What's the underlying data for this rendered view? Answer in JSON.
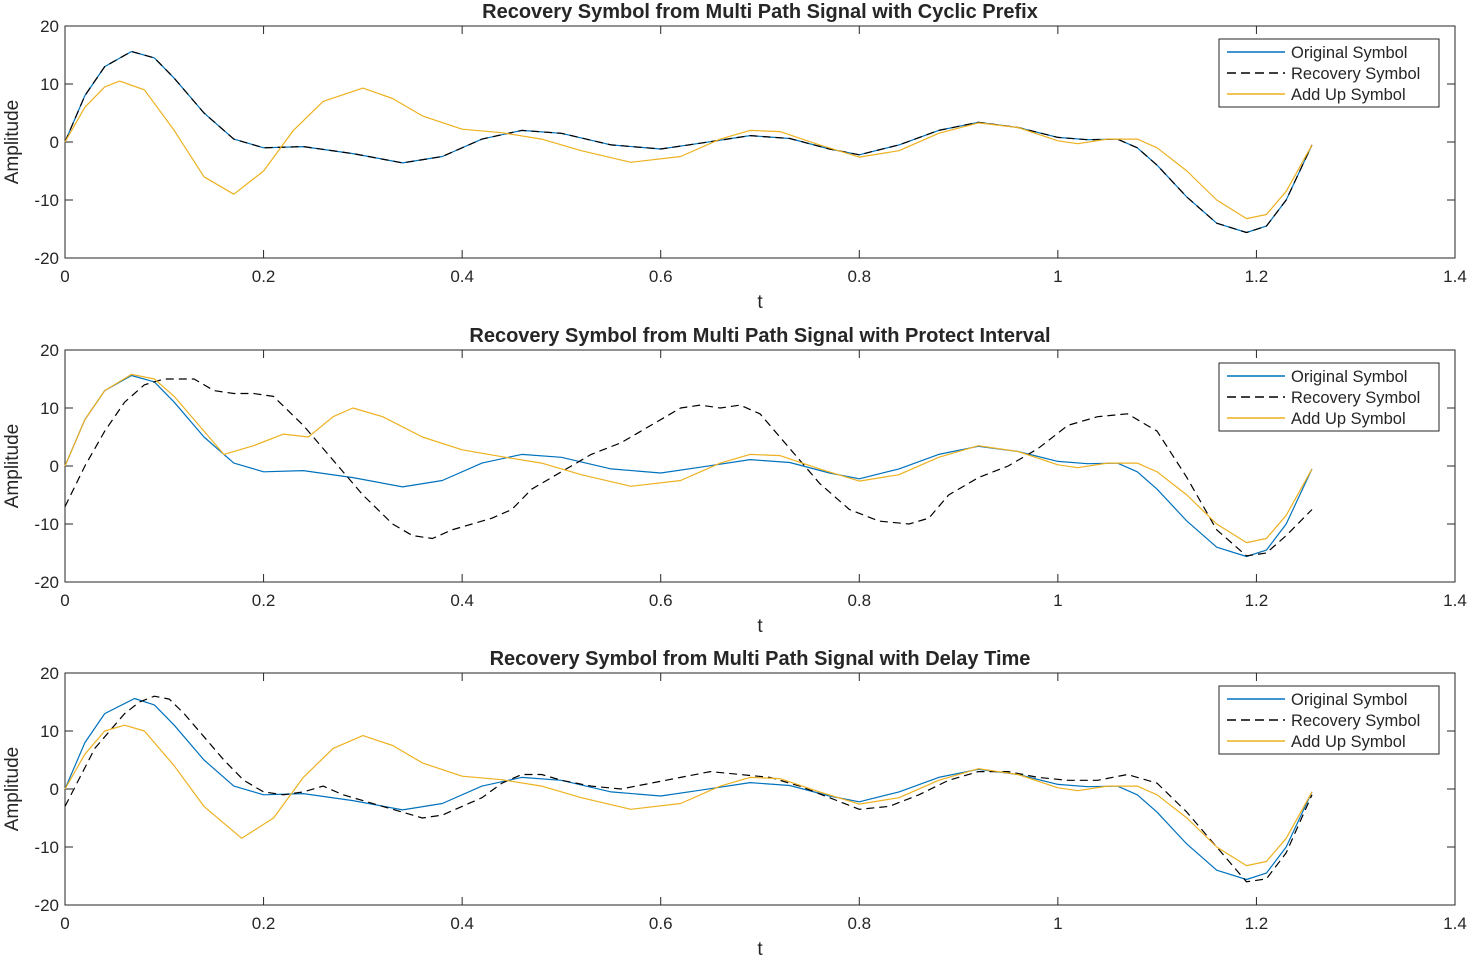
{
  "figure": {
    "colors": {
      "original": "#0072BD",
      "recovery": "#000000",
      "addup": "#EDB120",
      "axis": "#262626"
    }
  },
  "chart_data": [
    {
      "type": "line",
      "title": "Recovery Symbol from Multi Path Signal with Cyclic Prefix",
      "xlabel": "t",
      "ylabel": "Amplitude",
      "xlim": [
        0,
        1.4
      ],
      "ylim": [
        -20,
        20
      ],
      "xticks": [
        0,
        0.2,
        0.4,
        0.6,
        0.8,
        1,
        1.2,
        1.4
      ],
      "xtick_labels": [
        "0",
        "0.2",
        "0.4",
        "0.6",
        "0.8",
        "1",
        "1.2",
        "1.4"
      ],
      "yticks": [
        -20,
        -10,
        0,
        10,
        20
      ],
      "ytick_labels": [
        "-20",
        "-10",
        "0",
        "10",
        "20"
      ],
      "legend_position": "top-right",
      "grid": false,
      "series": [
        {
          "name": "Original Symbol",
          "style": "solid",
          "color": "#0072BD",
          "x": [
            0,
            0.02,
            0.04,
            0.067,
            0.09,
            0.11,
            0.14,
            0.17,
            0.2,
            0.24,
            0.29,
            0.34,
            0.38,
            0.42,
            0.46,
            0.5,
            0.55,
            0.6,
            0.64,
            0.69,
            0.73,
            0.77,
            0.8,
            0.84,
            0.88,
            0.92,
            0.96,
            1.0,
            1.03,
            1.06,
            1.08,
            1.1,
            1.13,
            1.16,
            1.19,
            1.21,
            1.23,
            1.256
          ],
          "y": [
            0,
            8,
            13,
            15.6,
            14.5,
            11,
            5,
            0.5,
            -1,
            -0.8,
            -2,
            -3.6,
            -2.5,
            0.5,
            2,
            1.5,
            -0.5,
            -1.2,
            -0.2,
            1.1,
            0.6,
            -1.2,
            -2.2,
            -0.5,
            2,
            3.4,
            2.5,
            0.8,
            0.4,
            0.5,
            -1,
            -4,
            -9.5,
            -14,
            -15.6,
            -14.5,
            -10,
            -0.5
          ]
        },
        {
          "name": "Recovery Symbol",
          "style": "dashed",
          "color": "#000000",
          "x": [
            0,
            0.02,
            0.04,
            0.067,
            0.09,
            0.11,
            0.14,
            0.17,
            0.2,
            0.24,
            0.29,
            0.34,
            0.38,
            0.42,
            0.46,
            0.5,
            0.55,
            0.6,
            0.64,
            0.69,
            0.73,
            0.77,
            0.8,
            0.84,
            0.88,
            0.92,
            0.96,
            1.0,
            1.03,
            1.06,
            1.08,
            1.1,
            1.13,
            1.16,
            1.19,
            1.21,
            1.23,
            1.256
          ],
          "y": [
            0,
            8,
            13,
            15.6,
            14.5,
            11,
            5,
            0.5,
            -1,
            -0.8,
            -2,
            -3.6,
            -2.5,
            0.5,
            2,
            1.5,
            -0.5,
            -1.2,
            -0.2,
            1.1,
            0.6,
            -1.2,
            -2.2,
            -0.5,
            2,
            3.4,
            2.5,
            0.8,
            0.4,
            0.5,
            -1,
            -4,
            -9.5,
            -14,
            -15.6,
            -14.5,
            -10,
            -0.5
          ]
        },
        {
          "name": "Add Up Symbol",
          "style": "solid",
          "color": "#EDB120",
          "x": [
            0,
            0.02,
            0.04,
            0.055,
            0.08,
            0.11,
            0.14,
            0.17,
            0.2,
            0.23,
            0.26,
            0.3,
            0.33,
            0.36,
            0.4,
            0.44,
            0.48,
            0.52,
            0.57,
            0.62,
            0.66,
            0.69,
            0.72,
            0.76,
            0.8,
            0.84,
            0.88,
            0.92,
            0.96,
            1.0,
            1.02,
            1.05,
            1.08,
            1.1,
            1.13,
            1.16,
            1.19,
            1.21,
            1.23,
            1.256
          ],
          "y": [
            0,
            6,
            9.5,
            10.5,
            9,
            2,
            -6,
            -9,
            -5,
            2,
            7,
            9.3,
            7.5,
            4.5,
            2.2,
            1.6,
            0.5,
            -1.5,
            -3.5,
            -2.5,
            0.5,
            2,
            1.8,
            -0.5,
            -2.6,
            -1.5,
            1.5,
            3.3,
            2.5,
            0.2,
            -0.3,
            0.5,
            0.5,
            -1,
            -5,
            -10,
            -13.2,
            -12.5,
            -8.5,
            -0.5
          ]
        }
      ]
    },
    {
      "type": "line",
      "title": "Recovery Symbol from Multi Path Signal with Protect Interval",
      "xlabel": "t",
      "ylabel": "Amplitude",
      "xlim": [
        0,
        1.4
      ],
      "ylim": [
        -20,
        20
      ],
      "xticks": [
        0,
        0.2,
        0.4,
        0.6,
        0.8,
        1,
        1.2,
        1.4
      ],
      "xtick_labels": [
        "0",
        "0.2",
        "0.4",
        "0.6",
        "0.8",
        "1",
        "1.2",
        "1.4"
      ],
      "yticks": [
        -20,
        -10,
        0,
        10,
        20
      ],
      "ytick_labels": [
        "-20",
        "-10",
        "0",
        "10",
        "20"
      ],
      "legend_position": "top-right",
      "grid": false,
      "series": [
        {
          "name": "Original Symbol",
          "style": "solid",
          "color": "#0072BD",
          "x": [
            0,
            0.02,
            0.04,
            0.067,
            0.09,
            0.11,
            0.14,
            0.17,
            0.2,
            0.24,
            0.29,
            0.34,
            0.38,
            0.42,
            0.46,
            0.5,
            0.55,
            0.6,
            0.64,
            0.69,
            0.73,
            0.77,
            0.8,
            0.84,
            0.88,
            0.92,
            0.96,
            1.0,
            1.03,
            1.06,
            1.08,
            1.1,
            1.13,
            1.16,
            1.19,
            1.21,
            1.23,
            1.256
          ],
          "y": [
            0,
            8,
            13,
            15.6,
            14.5,
            11,
            5,
            0.5,
            -1,
            -0.8,
            -2,
            -3.6,
            -2.5,
            0.5,
            2,
            1.5,
            -0.5,
            -1.2,
            -0.2,
            1.1,
            0.6,
            -1.2,
            -2.2,
            -0.5,
            2,
            3.4,
            2.5,
            0.8,
            0.4,
            0.5,
            -1,
            -4,
            -9.5,
            -14,
            -15.6,
            -14.5,
            -10,
            -0.5
          ]
        },
        {
          "name": "Recovery Symbol",
          "style": "dashed",
          "color": "#000000",
          "x": [
            0,
            0.02,
            0.04,
            0.06,
            0.08,
            0.1,
            0.13,
            0.15,
            0.17,
            0.19,
            0.21,
            0.24,
            0.27,
            0.3,
            0.33,
            0.35,
            0.37,
            0.39,
            0.41,
            0.43,
            0.45,
            0.47,
            0.5,
            0.53,
            0.56,
            0.59,
            0.62,
            0.64,
            0.66,
            0.68,
            0.7,
            0.73,
            0.76,
            0.79,
            0.82,
            0.85,
            0.87,
            0.89,
            0.92,
            0.95,
            0.98,
            1.01,
            1.04,
            1.07,
            1.1,
            1.13,
            1.16,
            1.19,
            1.21,
            1.23,
            1.256
          ],
          "y": [
            -7,
            0,
            6,
            11,
            14,
            15,
            15,
            13,
            12.5,
            12.5,
            12,
            7,
            1,
            -5,
            -10,
            -12,
            -12.5,
            -11,
            -10,
            -9,
            -7.5,
            -4,
            -1,
            2,
            4,
            7,
            10,
            10.5,
            10,
            10.5,
            9,
            3,
            -3,
            -7.5,
            -9.5,
            -10,
            -9,
            -5,
            -2,
            0,
            3,
            7,
            8.5,
            9,
            6,
            -2,
            -11,
            -15.5,
            -15,
            -12,
            -7.5
          ]
        },
        {
          "name": "Add Up Symbol",
          "style": "solid",
          "color": "#EDB120",
          "x": [
            0,
            0.02,
            0.04,
            0.067,
            0.09,
            0.11,
            0.13,
            0.16,
            0.19,
            0.22,
            0.245,
            0.27,
            0.29,
            0.32,
            0.36,
            0.4,
            0.44,
            0.48,
            0.52,
            0.57,
            0.62,
            0.66,
            0.69,
            0.72,
            0.76,
            0.8,
            0.84,
            0.88,
            0.92,
            0.96,
            1.0,
            1.02,
            1.05,
            1.08,
            1.1,
            1.13,
            1.16,
            1.19,
            1.21,
            1.23,
            1.256
          ],
          "y": [
            0,
            8,
            13,
            15.8,
            15,
            12,
            8,
            2,
            3.5,
            5.5,
            5,
            8.5,
            10,
            8.5,
            5,
            2.8,
            1.6,
            0.5,
            -1.5,
            -3.5,
            -2.5,
            0.5,
            2,
            1.8,
            -0.5,
            -2.6,
            -1.5,
            1.5,
            3.5,
            2.5,
            0.2,
            -0.3,
            0.5,
            0.5,
            -1,
            -5,
            -10,
            -13.2,
            -12.5,
            -8.5,
            -0.5
          ]
        }
      ]
    },
    {
      "type": "line",
      "title": "Recovery Symbol from Multi Path Signal with Delay Time",
      "xlabel": "t",
      "ylabel": "Amplitude",
      "xlim": [
        0,
        1.4
      ],
      "ylim": [
        -20,
        20
      ],
      "xticks": [
        0,
        0.2,
        0.4,
        0.6,
        0.8,
        1,
        1.2,
        1.4
      ],
      "xtick_labels": [
        "0",
        "0.2",
        "0.4",
        "0.6",
        "0.8",
        "1",
        "1.2",
        "1.4"
      ],
      "yticks": [
        -20,
        -10,
        0,
        10,
        20
      ],
      "ytick_labels": [
        "-20",
        "-10",
        "0",
        "10",
        "20"
      ],
      "legend_position": "top-right",
      "grid": false,
      "series": [
        {
          "name": "Original Symbol",
          "style": "solid",
          "color": "#0072BD",
          "x": [
            0,
            0.02,
            0.04,
            0.07,
            0.09,
            0.11,
            0.14,
            0.17,
            0.2,
            0.24,
            0.29,
            0.34,
            0.38,
            0.42,
            0.46,
            0.5,
            0.55,
            0.6,
            0.64,
            0.69,
            0.73,
            0.77,
            0.8,
            0.84,
            0.88,
            0.92,
            0.96,
            1.0,
            1.03,
            1.06,
            1.08,
            1.1,
            1.13,
            1.16,
            1.19,
            1.21,
            1.23,
            1.256
          ],
          "y": [
            0,
            8,
            13,
            15.6,
            14.5,
            11,
            5,
            0.5,
            -1,
            -0.8,
            -2,
            -3.6,
            -2.5,
            0.5,
            2,
            1.5,
            -0.5,
            -1.2,
            -0.2,
            1.1,
            0.6,
            -1.2,
            -2.2,
            -0.5,
            2,
            3.4,
            2.5,
            0.8,
            0.4,
            0.5,
            -1,
            -4,
            -9.5,
            -14,
            -15.6,
            -14.5,
            -10,
            -0.5
          ]
        },
        {
          "name": "Recovery Symbol",
          "style": "dashed",
          "color": "#000000",
          "x": [
            0,
            0.015,
            0.03,
            0.045,
            0.06,
            0.075,
            0.09,
            0.105,
            0.12,
            0.14,
            0.16,
            0.18,
            0.2,
            0.22,
            0.24,
            0.26,
            0.28,
            0.3,
            0.32,
            0.34,
            0.36,
            0.38,
            0.4,
            0.42,
            0.44,
            0.46,
            0.48,
            0.5,
            0.53,
            0.56,
            0.59,
            0.62,
            0.65,
            0.68,
            0.71,
            0.74,
            0.77,
            0.8,
            0.83,
            0.86,
            0.89,
            0.92,
            0.95,
            0.98,
            1.01,
            1.04,
            1.07,
            1.1,
            1.13,
            1.16,
            1.19,
            1.21,
            1.23,
            1.256
          ],
          "y": [
            -3,
            2,
            7,
            10,
            13,
            15,
            16,
            15.5,
            13,
            9,
            5,
            1.5,
            -0.5,
            -1,
            -0.5,
            0.5,
            -1,
            -2,
            -3,
            -4,
            -5,
            -4.5,
            -3,
            -1.5,
            1,
            2.5,
            2.5,
            1.5,
            0.5,
            0,
            1,
            2,
            3,
            2.5,
            2,
            0.5,
            -1.5,
            -3.5,
            -3,
            -1,
            1.5,
            3,
            3,
            2,
            1.5,
            1.5,
            2.5,
            1,
            -4,
            -10,
            -16,
            -15.5,
            -11,
            -1
          ]
        },
        {
          "name": "Add Up Symbol",
          "style": "solid",
          "color": "#EDB120",
          "x": [
            0,
            0.02,
            0.04,
            0.06,
            0.08,
            0.11,
            0.14,
            0.178,
            0.21,
            0.24,
            0.27,
            0.3,
            0.33,
            0.36,
            0.4,
            0.44,
            0.48,
            0.52,
            0.57,
            0.62,
            0.66,
            0.69,
            0.72,
            0.76,
            0.8,
            0.84,
            0.88,
            0.92,
            0.96,
            1.0,
            1.02,
            1.05,
            1.08,
            1.1,
            1.13,
            1.16,
            1.19,
            1.21,
            1.23,
            1.256
          ],
          "y": [
            0,
            6,
            10,
            11,
            10,
            4,
            -3,
            -8.5,
            -5,
            2,
            7,
            9.2,
            7.5,
            4.5,
            2.2,
            1.6,
            0.5,
            -1.5,
            -3.5,
            -2.5,
            0.5,
            2,
            1.8,
            -0.5,
            -2.6,
            -1.5,
            1.5,
            3.5,
            2.5,
            0.2,
            -0.3,
            0.5,
            0.5,
            -1,
            -5,
            -10,
            -13.2,
            -12.5,
            -8.5,
            -0.5
          ]
        }
      ]
    }
  ]
}
